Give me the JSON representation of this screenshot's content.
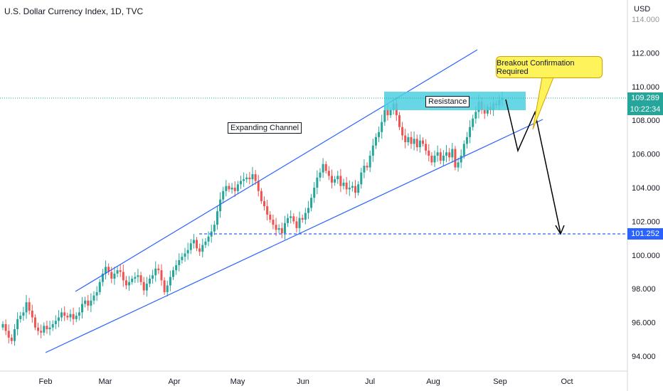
{
  "header": {
    "title": "U.S. Dollar Currency Index, 1D, TVC",
    "currency": "USD"
  },
  "annotations": {
    "expanding_channel": "Expanding Channel",
    "resistance": "Resistance",
    "breakout": "Breakout Confirmation Required"
  },
  "price_labels": {
    "current_price": "109.289",
    "countdown": "10:22:34",
    "target_level": "101.252"
  },
  "colors": {
    "up": "#26a69a",
    "down": "#ef5350",
    "channel": "#2962ff",
    "resistance_zone": "#4dd0e1",
    "target": "#2962ff"
  },
  "chart_data": {
    "type": "candlestick",
    "title": "U.S. Dollar Currency Index, 1D, TVC",
    "ylabel": "USD",
    "ylim": [
      92.5,
      115.5
    ],
    "y_ticks": [
      "94.000",
      "96.000",
      "98.000",
      "100.000",
      "102.000",
      "104.000",
      "106.000",
      "108.000",
      "110.000",
      "112.000",
      "114.000"
    ],
    "x_ticks": [
      "Feb",
      "Mar",
      "Apr",
      "May",
      "Jun",
      "Jul",
      "Aug",
      "Sep",
      "Oct"
    ],
    "current_price": 109.289,
    "target_level": 101.252,
    "resistance_zone": [
      108.6,
      109.7
    ],
    "close_series": [
      95.9,
      95.5,
      95.1,
      94.9,
      95.6,
      96.2,
      96.4,
      96.6,
      97.2,
      96.7,
      96.3,
      95.7,
      95.5,
      95.4,
      95.8,
      95.6,
      95.7,
      95.9,
      96.1,
      96.3,
      96.6,
      96.4,
      96.3,
      96.5,
      96.2,
      96.4,
      96.6,
      97.1,
      97.3,
      97.0,
      97.3,
      97.6,
      97.8,
      98.4,
      98.9,
      99.3,
      99.0,
      98.6,
      98.9,
      99.1,
      99.0,
      98.5,
      98.2,
      98.4,
      98.6,
      98.7,
      98.8,
      98.4,
      97.9,
      98.3,
      98.6,
      98.8,
      99.2,
      99.1,
      98.5,
      97.8,
      98.2,
      98.7,
      99.1,
      99.4,
      99.7,
      99.9,
      100.1,
      100.3,
      100.7,
      100.9,
      100.4,
      100.2,
      100.6,
      100.8,
      101.1,
      101.4,
      101.8,
      102.6,
      103.3,
      103.8,
      104.1,
      103.9,
      104.0,
      103.8,
      104.2,
      104.4,
      104.5,
      104.6,
      104.5,
      104.8,
      104.4,
      103.8,
      103.2,
      102.9,
      102.4,
      102.1,
      101.8,
      101.5,
      101.6,
      101.3,
      101.9,
      102.2,
      102.3,
      102.0,
      101.6,
      102.2,
      102.1,
      102.5,
      102.8,
      103.4,
      104.0,
      104.6,
      104.9,
      105.4,
      105.0,
      104.7,
      104.3,
      104.5,
      104.7,
      104.1,
      104.3,
      103.9,
      104.0,
      104.1,
      103.7,
      104.2,
      104.9,
      105.3,
      105.2,
      105.9,
      106.5,
      107.0,
      107.3,
      107.9,
      108.6,
      108.3,
      108.6,
      109.0,
      108.3,
      107.6,
      107.1,
      106.7,
      107.0,
      106.6,
      106.9,
      106.4,
      106.8,
      106.6,
      106.2,
      105.9,
      105.5,
      105.9,
      106.1,
      105.6,
      105.9,
      106.1,
      105.8,
      106.3,
      105.2,
      105.5,
      105.9,
      106.6,
      107.0,
      107.6,
      108.1,
      108.5,
      109.1,
      108.6,
      108.4,
      108.8,
      108.6,
      109.0,
      108.9,
      109.2,
      109.3
    ]
  }
}
